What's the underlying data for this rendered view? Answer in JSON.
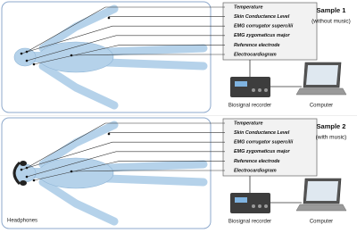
{
  "panels": [
    {
      "title": "Sample 1",
      "subtitle": "(without music)",
      "sensors": [
        "Temperature",
        "Skin Conductance Level",
        "EMG corrugator supercilii",
        "EMG zygomaticus major",
        "Reference electrode",
        "Electrocardiogram"
      ],
      "recorder": "Biosignal recorder",
      "computer": "Computer"
    },
    {
      "title": "Sample 2",
      "subtitle": "(with music)",
      "sensors": [
        "Temperature",
        "Skin Conductance Level",
        "EMG corrugator supercilii",
        "EMG zygomaticus major",
        "Reference electrode",
        "Electrocardiogram"
      ],
      "recorder": "Biosignal recorder",
      "computer": "Computer",
      "headphones": "Headphones"
    }
  ]
}
